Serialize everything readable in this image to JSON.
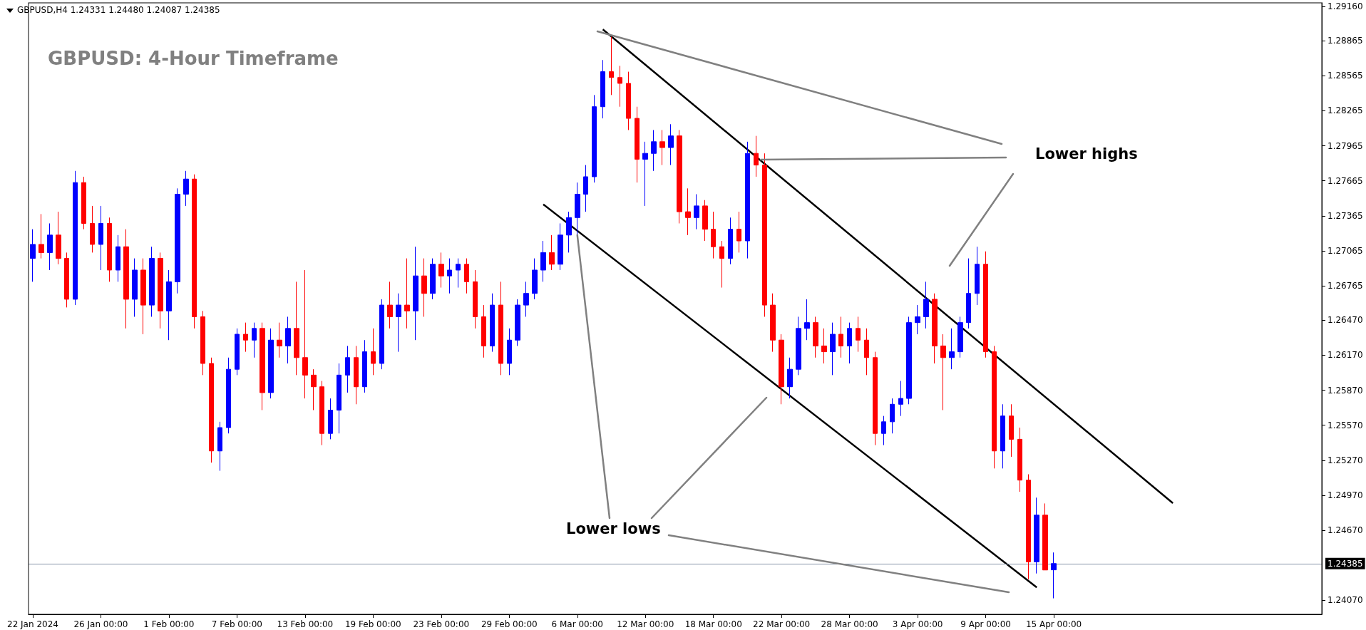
{
  "chart_data": {
    "type": "candlestick",
    "title": "GBPUSD: 4-Hour Timeframe",
    "annotations": [
      "GBPUSD,H4  1.24331 1.24480 1.24087 1.24385",
      "Lower highs",
      {
        "text": "Lower lows",
        "x": "6 Mar 00:00",
        "y": 1.272
      }
    ],
    "categories": [
      "22 Jan 2024",
      null,
      null,
      null,
      null,
      null,
      null,
      null,
      "26 Jan 00:00",
      null,
      null,
      null,
      null,
      null,
      null,
      null,
      "1 Feb 00:00",
      null,
      null,
      null,
      null,
      null,
      null,
      null,
      "7 Feb 00:00",
      null,
      null,
      null,
      null,
      null,
      null,
      null,
      "13 Feb 00:00",
      null,
      null,
      null,
      null,
      null,
      null,
      null,
      "19 Feb 00:00",
      null,
      null,
      null,
      null,
      null,
      null,
      null,
      "23 Feb 00:00",
      null,
      null,
      null,
      null,
      null,
      null,
      null,
      "29 Feb 00:00",
      null,
      null,
      null,
      null,
      null,
      null,
      null,
      "6 Mar 00:00",
      null,
      null,
      null,
      null,
      null,
      null,
      null,
      "12 Mar 00:00",
      null,
      null,
      null,
      null,
      null,
      null,
      null,
      "18 Mar 00:00",
      null,
      null,
      null,
      null,
      null,
      null,
      null,
      "22 Mar 00:00",
      null,
      null,
      null,
      null,
      null,
      null,
      null,
      "28 Mar 00:00",
      null,
      null,
      null,
      null,
      null,
      null,
      null,
      "3 Apr 00:00",
      null,
      null,
      null,
      null,
      null,
      null,
      null,
      "9 Apr 00:00",
      null,
      null,
      null,
      null,
      null,
      null,
      null,
      "15 Apr 00:00",
      null,
      null,
      null,
      null,
      null,
      null,
      null,
      null,
      null,
      null,
      null,
      null,
      null,
      null,
      null,
      null,
      null,
      null,
      null,
      null,
      null,
      null,
      null,
      null,
      null,
      null,
      null,
      null,
      null,
      null,
      null
    ],
    "colors": [
      "#0000ff",
      "#ff0000",
      "#0000ff",
      "#ff0000",
      "#ff0000",
      "#0000ff",
      "#ff0000",
      "#ff0000",
      "#0000ff",
      "#ff0000",
      "#0000ff",
      "#ff0000",
      "#0000ff",
      "#ff0000",
      "#0000ff",
      "#ff0000",
      "#0000ff",
      "#0000ff",
      "#0000ff",
      "#ff0000",
      "#ff0000",
      "#ff0000",
      "#0000ff",
      "#0000ff",
      "#0000ff",
      "#ff0000",
      "#0000ff",
      "#ff0000",
      "#0000ff",
      "#ff0000",
      "#0000ff",
      "#ff0000",
      "#ff0000",
      "#ff0000",
      "#ff0000",
      "#0000ff",
      "#0000ff",
      "#0000ff",
      "#ff0000",
      "#0000ff",
      "#ff0000",
      "#0000ff",
      "#ff0000",
      "#0000ff",
      "#ff0000",
      "#0000ff",
      "#ff0000",
      "#0000ff",
      "#ff0000",
      "#0000ff",
      "#0000ff",
      "#ff0000",
      "#ff0000",
      "#ff0000",
      "#0000ff",
      "#ff0000",
      "#0000ff",
      "#0000ff",
      "#0000ff",
      "#0000ff",
      "#0000ff",
      "#ff0000",
      "#0000ff",
      "#0000ff",
      "#0000ff",
      "#0000ff",
      "#0000ff",
      "#0000ff",
      "#ff0000",
      "#ff0000",
      "#ff0000",
      "#ff0000",
      "#0000ff",
      "#0000ff",
      "#ff0000",
      "#0000ff",
      "#ff0000",
      "#ff0000",
      "#0000ff",
      "#ff0000",
      "#ff0000",
      "#ff0000",
      "#0000ff",
      "#ff0000",
      "#0000ff",
      "#ff0000",
      "#ff0000",
      "#ff0000",
      "#ff0000",
      "#0000ff",
      "#0000ff",
      "#0000ff",
      "#ff0000",
      "#ff0000",
      "#0000ff",
      "#ff0000",
      "#0000ff",
      "#ff0000",
      "#ff0000",
      "#ff0000",
      "#0000ff",
      "#0000ff",
      "#0000ff",
      "#0000ff",
      "#0000ff",
      "#0000ff",
      "#ff0000",
      "#ff0000",
      "#0000ff",
      "#0000ff",
      "#0000ff",
      "#0000ff",
      "#ff0000",
      "#ff0000",
      "#0000ff",
      "#ff0000",
      "#ff0000",
      "#ff0000",
      "#0000ff",
      "#ff0000",
      "#0000ff",
      null,
      null,
      null,
      null,
      null,
      null,
      null,
      null,
      null,
      null,
      null,
      null,
      null,
      null,
      null,
      null,
      null,
      null,
      null,
      null,
      null,
      null,
      null,
      null,
      null,
      null,
      null,
      null,
      null,
      null,
      null
    ],
    "ohlc": [
      [
        1.27,
        1.2725,
        1.268,
        1.2712
      ],
      [
        1.2712,
        1.2738,
        1.27,
        1.2705
      ],
      [
        1.2705,
        1.273,
        1.269,
        1.272
      ],
      [
        1.272,
        1.274,
        1.2695,
        1.27
      ],
      [
        1.27,
        1.2705,
        1.2658,
        1.2665
      ],
      [
        1.2665,
        1.2775,
        1.266,
        1.2765
      ],
      [
        1.2765,
        1.277,
        1.2725,
        1.273
      ],
      [
        1.273,
        1.2745,
        1.2705,
        1.2712
      ],
      [
        1.2712,
        1.2745,
        1.269,
        1.273
      ],
      [
        1.273,
        1.2735,
        1.268,
        1.269
      ],
      [
        1.269,
        1.272,
        1.268,
        1.271
      ],
      [
        1.271,
        1.2725,
        1.264,
        1.2665
      ],
      [
        1.2665,
        1.27,
        1.265,
        1.269
      ],
      [
        1.269,
        1.27,
        1.2635,
        1.266
      ],
      [
        1.266,
        1.271,
        1.265,
        1.27
      ],
      [
        1.27,
        1.2705,
        1.264,
        1.2655
      ],
      [
        1.2655,
        1.269,
        1.263,
        1.268
      ],
      [
        1.268,
        1.276,
        1.267,
        1.2755
      ],
      [
        1.2755,
        1.2775,
        1.2745,
        1.2768
      ],
      [
        1.2768,
        1.2772,
        1.264,
        1.265
      ],
      [
        1.265,
        1.2655,
        1.26,
        1.261
      ],
      [
        1.261,
        1.2615,
        1.2525,
        1.2535
      ],
      [
        1.2535,
        1.256,
        1.2518,
        1.2555
      ],
      [
        1.2555,
        1.2615,
        1.255,
        1.2605
      ],
      [
        1.2605,
        1.264,
        1.26,
        1.2635
      ],
      [
        1.2635,
        1.2645,
        1.262,
        1.263
      ],
      [
        1.263,
        1.2645,
        1.2615,
        1.264
      ],
      [
        1.264,
        1.2645,
        1.257,
        1.2585
      ],
      [
        1.2585,
        1.264,
        1.258,
        1.263
      ],
      [
        1.263,
        1.2645,
        1.2615,
        1.2625
      ],
      [
        1.2625,
        1.265,
        1.261,
        1.264
      ],
      [
        1.264,
        1.268,
        1.26,
        1.2615
      ],
      [
        1.2615,
        1.269,
        1.258,
        1.26
      ],
      [
        1.26,
        1.2605,
        1.257,
        1.259
      ],
      [
        1.259,
        1.2595,
        1.254,
        1.255
      ],
      [
        1.255,
        1.258,
        1.2545,
        1.257
      ],
      [
        1.257,
        1.261,
        1.255,
        1.26
      ],
      [
        1.26,
        1.2625,
        1.2585,
        1.2615
      ],
      [
        1.2615,
        1.2625,
        1.2575,
        1.259
      ],
      [
        1.259,
        1.263,
        1.2585,
        1.262
      ],
      [
        1.262,
        1.264,
        1.26,
        1.261
      ],
      [
        1.261,
        1.2665,
        1.2605,
        1.266
      ],
      [
        1.266,
        1.268,
        1.264,
        1.265
      ],
      [
        1.265,
        1.267,
        1.262,
        1.266
      ],
      [
        1.266,
        1.27,
        1.264,
        1.2655
      ],
      [
        1.2655,
        1.271,
        1.263,
        1.2685
      ],
      [
        1.2685,
        1.27,
        1.265,
        1.267
      ],
      [
        1.267,
        1.27,
        1.2665,
        1.2695
      ],
      [
        1.2695,
        1.2705,
        1.2675,
        1.2685
      ],
      [
        1.2685,
        1.27,
        1.267,
        1.269
      ],
      [
        1.269,
        1.27,
        1.2675,
        1.2695
      ],
      [
        1.2695,
        1.27,
        1.267,
        1.268
      ],
      [
        1.268,
        1.269,
        1.264,
        1.265
      ],
      [
        1.265,
        1.266,
        1.2615,
        1.2625
      ],
      [
        1.2625,
        1.267,
        1.262,
        1.266
      ],
      [
        1.266,
        1.268,
        1.26,
        1.261
      ],
      [
        1.261,
        1.264,
        1.26,
        1.263
      ],
      [
        1.263,
        1.2665,
        1.2625,
        1.266
      ],
      [
        1.266,
        1.268,
        1.265,
        1.267
      ],
      [
        1.267,
        1.27,
        1.2665,
        1.269
      ],
      [
        1.269,
        1.2715,
        1.268,
        1.2705
      ],
      [
        1.2705,
        1.272,
        1.269,
        1.2695
      ],
      [
        1.2695,
        1.273,
        1.269,
        1.272
      ],
      [
        1.272,
        1.274,
        1.2705,
        1.2735
      ],
      [
        1.2735,
        1.2765,
        1.272,
        1.2755
      ],
      [
        1.2755,
        1.278,
        1.274,
        1.277
      ],
      [
        1.277,
        1.284,
        1.2765,
        1.283
      ],
      [
        1.283,
        1.287,
        1.282,
        1.286
      ],
      [
        1.286,
        1.289,
        1.284,
        1.2855
      ],
      [
        1.2855,
        1.2865,
        1.283,
        1.285
      ],
      [
        1.285,
        1.286,
        1.281,
        1.282
      ],
      [
        1.282,
        1.283,
        1.2765,
        1.2785
      ],
      [
        1.2785,
        1.28,
        1.2745,
        1.279
      ],
      [
        1.279,
        1.281,
        1.2775,
        1.28
      ],
      [
        1.28,
        1.281,
        1.278,
        1.2795
      ],
      [
        1.2795,
        1.2815,
        1.278,
        1.2805
      ],
      [
        1.2805,
        1.281,
        1.273,
        1.274
      ],
      [
        1.274,
        1.276,
        1.272,
        1.2735
      ],
      [
        1.2735,
        1.2755,
        1.2725,
        1.2745
      ],
      [
        1.2745,
        1.275,
        1.2715,
        1.2725
      ],
      [
        1.2725,
        1.274,
        1.27,
        1.271
      ],
      [
        1.271,
        1.2715,
        1.2675,
        1.27
      ],
      [
        1.27,
        1.2735,
        1.2695,
        1.2725
      ],
      [
        1.2725,
        1.274,
        1.2705,
        1.2715
      ],
      [
        1.2715,
        1.28,
        1.27,
        1.279
      ],
      [
        1.279,
        1.2805,
        1.277,
        1.278
      ],
      [
        1.278,
        1.279,
        1.265,
        1.266
      ],
      [
        1.266,
        1.267,
        1.262,
        1.263
      ],
      [
        1.263,
        1.2635,
        1.2575,
        1.259
      ],
      [
        1.259,
        1.2615,
        1.258,
        1.2605
      ],
      [
        1.2605,
        1.265,
        1.26,
        1.264
      ],
      [
        1.264,
        1.2665,
        1.263,
        1.2645
      ],
      [
        1.2645,
        1.265,
        1.2615,
        1.2625
      ],
      [
        1.2625,
        1.264,
        1.261,
        1.262
      ],
      [
        1.262,
        1.2645,
        1.26,
        1.2635
      ],
      [
        1.2635,
        1.265,
        1.2615,
        1.2625
      ],
      [
        1.2625,
        1.2645,
        1.261,
        1.264
      ],
      [
        1.264,
        1.265,
        1.262,
        1.263
      ],
      [
        1.263,
        1.264,
        1.26,
        1.2615
      ],
      [
        1.2615,
        1.262,
        1.254,
        1.255
      ],
      [
        1.255,
        1.2565,
        1.254,
        1.256
      ],
      [
        1.256,
        1.258,
        1.255,
        1.2575
      ],
      [
        1.2575,
        1.2595,
        1.2565,
        1.258
      ],
      [
        1.258,
        1.265,
        1.2575,
        1.2645
      ],
      [
        1.2645,
        1.266,
        1.2635,
        1.265
      ],
      [
        1.265,
        1.268,
        1.264,
        1.2665
      ],
      [
        1.2665,
        1.267,
        1.261,
        1.2625
      ],
      [
        1.2625,
        1.2635,
        1.257,
        1.2615
      ],
      [
        1.2615,
        1.264,
        1.2605,
        1.262
      ],
      [
        1.262,
        1.265,
        1.2615,
        1.2645
      ],
      [
        1.2645,
        1.27,
        1.264,
        1.267
      ],
      [
        1.267,
        1.271,
        1.266,
        1.2695
      ],
      [
        1.2695,
        1.2706,
        1.2615,
        1.262
      ],
      [
        1.262,
        1.2625,
        1.252,
        1.2535
      ],
      [
        1.2535,
        1.2575,
        1.252,
        1.2565
      ],
      [
        1.2565,
        1.2575,
        1.253,
        1.2545
      ],
      [
        1.2545,
        1.2555,
        1.25,
        1.251
      ],
      [
        1.251,
        1.2515,
        1.2425,
        1.244
      ],
      [
        1.244,
        1.2495,
        1.243,
        1.248
      ],
      [
        1.248,
        1.249,
        1.2433,
        1.2433
      ],
      [
        1.24331,
        1.2448,
        1.24087,
        1.24385
      ],
      null,
      null,
      null,
      null,
      null,
      null,
      null,
      null,
      null,
      null,
      null,
      null,
      null,
      null,
      null,
      null,
      null,
      null,
      null,
      null,
      null,
      null,
      null,
      null,
      null,
      null,
      null,
      null,
      null,
      null,
      null
    ],
    "series": [
      {
        "type": "line",
        "color": "#000000",
        "values": [
          null,
          null,
          null,
          null,
          null,
          null,
          null,
          null,
          null,
          null,
          null,
          null,
          null,
          null,
          null,
          null,
          null,
          null,
          null,
          null,
          null,
          null,
          null,
          null,
          null,
          null,
          null,
          null,
          null,
          null,
          null,
          null,
          null,
          null,
          null,
          null,
          null,
          null,
          null,
          null,
          null,
          null,
          null,
          null,
          null,
          null,
          null,
          null,
          null,
          null,
          null,
          null,
          null,
          null,
          null,
          null,
          null,
          null,
          null,
          null,
          null,
          null,
          null,
          null,
          null,
          null,
          null,
          1.28963,
          null,
          null,
          null,
          null,
          null,
          null,
          null,
          null,
          null,
          null,
          null,
          null,
          null,
          null,
          null,
          null,
          null,
          null,
          null,
          null,
          null,
          null,
          null,
          null,
          null,
          null,
          null,
          null,
          null,
          null,
          null,
          null,
          null,
          null,
          null,
          null,
          null,
          null,
          null,
          null,
          null,
          null,
          null,
          null,
          null,
          null,
          null,
          null,
          null,
          null,
          null,
          null,
          null,
          null,
          null,
          null,
          null,
          null,
          null,
          null,
          null,
          null,
          null,
          null,
          null,
          null,
          1.24903,
          null,
          null,
          null,
          null,
          null,
          null,
          null,
          null,
          null,
          null,
          null,
          null,
          null,
          null,
          null,
          null,
          null
        ]
      },
      {
        "type": "line",
        "color": "#000000",
        "values": [
          null,
          null,
          null,
          null,
          null,
          null,
          null,
          null,
          null,
          null,
          null,
          null,
          null,
          null,
          null,
          null,
          null,
          null,
          null,
          null,
          null,
          null,
          null,
          null,
          null,
          null,
          null,
          null,
          null,
          null,
          null,
          null,
          null,
          null,
          null,
          null,
          null,
          null,
          null,
          null,
          null,
          null,
          null,
          null,
          null,
          null,
          null,
          null,
          null,
          null,
          null,
          null,
          null,
          null,
          null,
          null,
          null,
          null,
          null,
          null,
          1.27463,
          null,
          null,
          null,
          null,
          null,
          null,
          null,
          null,
          null,
          null,
          null,
          null,
          null,
          null,
          null,
          null,
          null,
          null,
          null,
          null,
          null,
          null,
          null,
          null,
          null,
          null,
          null,
          null,
          null,
          null,
          null,
          null,
          null,
          null,
          null,
          null,
          null,
          null,
          null,
          null,
          null,
          null,
          null,
          null,
          null,
          null,
          null,
          null,
          null,
          null,
          null,
          null,
          null,
          null,
          null,
          null,
          null,
          1.24181,
          null,
          null,
          null,
          null,
          null,
          null,
          null,
          null,
          null,
          null,
          null,
          null,
          null,
          null,
          null,
          null,
          null,
          null,
          null,
          null,
          null,
          null,
          null,
          null,
          null,
          null,
          null,
          null,
          null,
          null,
          null,
          null,
          null
        ]
      }
    ],
    "ylim": [
      1.2395,
      1.2919
    ],
    "yticks": [
      {
        "value": 1.2916,
        "label": "1.29160"
      },
      {
        "value": 1.28865,
        "label": "1.28865"
      },
      {
        "value": 1.28565,
        "label": "1.28565"
      },
      {
        "value": 1.28265,
        "label": "1.28265"
      },
      {
        "value": 1.27965,
        "label": "1.27965"
      },
      {
        "value": 1.27665,
        "label": "1.27665"
      },
      {
        "value": 1.27365,
        "label": "1.27365"
      },
      {
        "value": 1.27065,
        "label": "1.27065"
      },
      {
        "value": 1.26765,
        "label": "1.26765"
      },
      {
        "value": 1.2647,
        "label": "1.26470"
      },
      {
        "value": 1.2617,
        "label": "1.26170"
      },
      {
        "value": 1.2587,
        "label": "1.25870"
      },
      {
        "value": 1.2557,
        "label": "1.25570"
      },
      {
        "value": 1.2527,
        "label": "1.25270"
      },
      {
        "value": 1.2497,
        "label": "1.24970"
      },
      {
        "value": 1.2467,
        "label": "1.24670"
      },
      {
        "value": 1.2407,
        "label": "1.24070"
      }
    ],
    "ref_lines": [
      {
        "axis": "y",
        "value": 1.24385,
        "label": "1.24385",
        "color": "#8494a8"
      }
    ],
    "grid": false
  }
}
